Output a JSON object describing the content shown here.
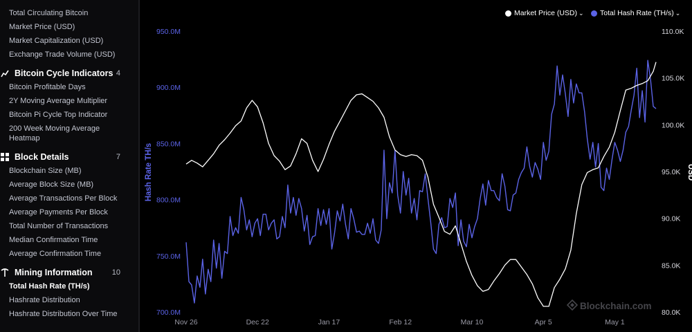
{
  "sidebar": {
    "top_items": [
      {
        "label": "Total Circulating Bitcoin"
      },
      {
        "label": "Market Price (USD)"
      },
      {
        "label": "Market Capitalization (USD)"
      },
      {
        "label": "Exchange Trade Volume (USD)"
      }
    ],
    "sections": [
      {
        "title": "Bitcoin Cycle Indicators",
        "count": "4",
        "icon": "chart-line-icon",
        "items": [
          {
            "label": "Bitcoin Profitable Days"
          },
          {
            "label": "2Y Moving Average Multiplier"
          },
          {
            "label": "Bitcoin Pi Cycle Top Indicator"
          },
          {
            "label": "200 Week Moving Average Heatmap"
          }
        ]
      },
      {
        "title": "Block Details",
        "count": "7",
        "icon": "grid-icon",
        "items": [
          {
            "label": "Blockchain Size (MB)"
          },
          {
            "label": "Average Block Size (MB)"
          },
          {
            "label": "Average Transactions Per Block"
          },
          {
            "label": "Average Payments Per Block"
          },
          {
            "label": "Total Number of Transactions"
          },
          {
            "label": "Median Confirmation Time"
          },
          {
            "label": "Average Confirmation Time"
          }
        ]
      },
      {
        "title": "Mining Information",
        "count": "10",
        "icon": "pickaxe-icon",
        "items": [
          {
            "label": "Total Hash Rate (TH/s)",
            "active": true
          },
          {
            "label": "Hashrate Distribution"
          },
          {
            "label": "Hashrate Distribution Over Time"
          }
        ]
      }
    ]
  },
  "legend": {
    "market_price": "Market Price (USD)",
    "hash_rate": "Total Hash Rate (TH/s)"
  },
  "watermark": "Blockchain.com",
  "colors": {
    "hash_rate": "#5b63e6",
    "price": "#ffffff",
    "background": "#000000"
  },
  "chart_data": {
    "type": "line",
    "xlabel": "",
    "ylabel_left": "Hash Rate TH/s",
    "ylabel_right": "USD",
    "x_ticks": [
      "Nov 26",
      "Dec 22",
      "Jan 17",
      "Feb 12",
      "Mar 10",
      "Apr 5",
      "May 1"
    ],
    "y_left_ticks": [
      "950.0M",
      "900.0M",
      "850.0M",
      "800.0M",
      "750.0M",
      "700.0M"
    ],
    "y_right_ticks": [
      "110.0K",
      "105.0K",
      "100.0K",
      "95.0K",
      "90.0K",
      "85.0K",
      "80.0K"
    ],
    "y_left_range": [
      700,
      950
    ],
    "y_right_range": [
      80,
      110
    ],
    "x_range_days": [
      0,
      171
    ],
    "series": [
      {
        "name": "Total Hash Rate (TH/s)",
        "axis": "left",
        "unit": "M TH/s",
        "x": [
          0,
          1,
          2,
          3,
          4,
          5,
          6,
          7,
          8,
          9,
          10,
          11,
          12,
          13,
          14,
          15,
          16,
          17,
          18,
          19,
          20,
          21,
          22,
          23,
          24,
          25,
          26,
          27,
          28,
          29,
          30,
          31,
          32,
          33,
          34,
          35,
          36,
          37,
          38,
          39,
          40,
          41,
          42,
          43,
          44,
          45,
          46,
          47,
          48,
          49,
          50,
          51,
          52,
          53,
          54,
          55,
          56,
          57,
          58,
          59,
          60,
          61,
          62,
          63,
          64,
          65,
          66,
          67,
          68,
          69,
          70,
          71,
          72,
          73,
          74,
          75,
          76,
          77,
          78,
          79,
          80,
          81,
          82,
          83,
          84,
          85,
          86,
          87,
          88,
          89,
          90,
          91,
          92,
          93,
          94,
          95,
          96,
          97,
          98,
          99,
          100,
          101,
          102,
          103,
          104,
          105,
          106,
          107,
          108,
          109,
          110,
          111,
          112,
          113,
          114,
          115,
          116,
          117,
          118,
          119,
          120,
          121,
          122,
          123,
          124,
          125,
          126,
          127,
          128,
          129,
          130,
          131,
          132,
          133,
          134,
          135,
          136,
          137,
          138,
          139,
          140,
          141,
          142,
          143,
          144,
          145,
          146,
          147,
          148,
          149,
          150,
          151,
          152,
          153,
          154,
          155,
          156,
          157,
          158,
          159,
          160,
          161,
          162,
          163,
          164,
          165,
          166,
          167,
          168,
          169,
          170,
          171
        ],
        "values": [
          762,
          727,
          724,
          708,
          732,
          722,
          747,
          716,
          738,
          727,
          764,
          739,
          761,
          730,
          754,
          752,
          785,
          768,
          775,
          770,
          802,
          791,
          773,
          782,
          767,
          779,
          783,
          768,
          787,
          787,
          773,
          779,
          782,
          765,
          767,
          785,
          775,
          813,
          788,
          802,
          786,
          801,
          792,
          772,
          786,
          760,
          767,
          768,
          792,
          777,
          791,
          778,
          792,
          756,
          770,
          790,
          781,
          796,
          778,
          765,
          792,
          783,
          771,
          772,
          769,
          769,
          779,
          770,
          783,
          764,
          761,
          773,
          844,
          783,
          815,
          806,
          844,
          804,
          788,
          825,
          804,
          819,
          788,
          801,
          782,
          808,
          807,
          823,
          801,
          780,
          756,
          752,
          778,
          784,
          775,
          776,
          801,
          793,
          806,
          759,
          782,
          763,
          758,
          778,
          766,
          776,
          783,
          801,
          814,
          795,
          817,
          808,
          808,
          802,
          799,
          823,
          812,
          791,
          790,
          804,
          806,
          818,
          824,
          828,
          847,
          830,
          820,
          833,
          827,
          818,
          851,
          835,
          843,
          876,
          885,
          919,
          893,
          911,
          894,
          874,
          907,
          886,
          903,
          895,
          895,
          878,
          854,
          836,
          851,
          829,
          850,
          811,
          808,
          828,
          818,
          836,
          851,
          844,
          834,
          844,
          860,
          865,
          880,
          893,
          917,
          873,
          897,
          869,
          924,
          907,
          883,
          881
        ]
      },
      {
        "name": "Market Price (USD)",
        "axis": "right",
        "unit": "K USD",
        "x": [
          0,
          2,
          4,
          6,
          8,
          10,
          12,
          14,
          16,
          18,
          20,
          22,
          24,
          26,
          28,
          30,
          32,
          34,
          36,
          38,
          40,
          42,
          44,
          46,
          48,
          50,
          52,
          54,
          56,
          58,
          60,
          62,
          64,
          66,
          68,
          70,
          72,
          74,
          76,
          78,
          80,
          82,
          84,
          86,
          88,
          90,
          92,
          94,
          96,
          98,
          100,
          102,
          104,
          106,
          108,
          110,
          112,
          114,
          116,
          118,
          120,
          122,
          124,
          126,
          128,
          130,
          132,
          134,
          136,
          138,
          140,
          142,
          144,
          146,
          148,
          150,
          152,
          154,
          156,
          158,
          160,
          162,
          164,
          166,
          168,
          170,
          171
        ],
        "values": [
          95.8,
          96.2,
          95.9,
          95.5,
          96.2,
          96.9,
          97.8,
          98.4,
          99.1,
          99.9,
          100.4,
          101.8,
          102.6,
          101.9,
          100.2,
          98.0,
          96.7,
          96.1,
          95.2,
          95.6,
          96.9,
          98.5,
          98.0,
          96.2,
          95.0,
          96.3,
          97.9,
          99.3,
          100.4,
          101.5,
          102.6,
          103.2,
          103.3,
          102.9,
          102.5,
          101.8,
          100.8,
          98.7,
          97.3,
          96.8,
          96.6,
          96.8,
          96.7,
          96.2,
          94.4,
          91.5,
          90.1,
          88.6,
          88.3,
          89.2,
          87.3,
          85.4,
          83.9,
          82.8,
          82.2,
          82.4,
          83.3,
          84.1,
          85.0,
          85.6,
          85.6,
          84.8,
          84.0,
          83.0,
          81.5,
          80.6,
          80.6,
          82.6,
          83.5,
          84.6,
          86.6,
          90.5,
          93.6,
          94.9,
          95.2,
          95.4,
          96.6,
          97.6,
          99.2,
          101.5,
          103.7,
          103.9,
          104.2,
          104.4,
          104.7,
          105.7,
          106.7
        ]
      }
    ]
  }
}
